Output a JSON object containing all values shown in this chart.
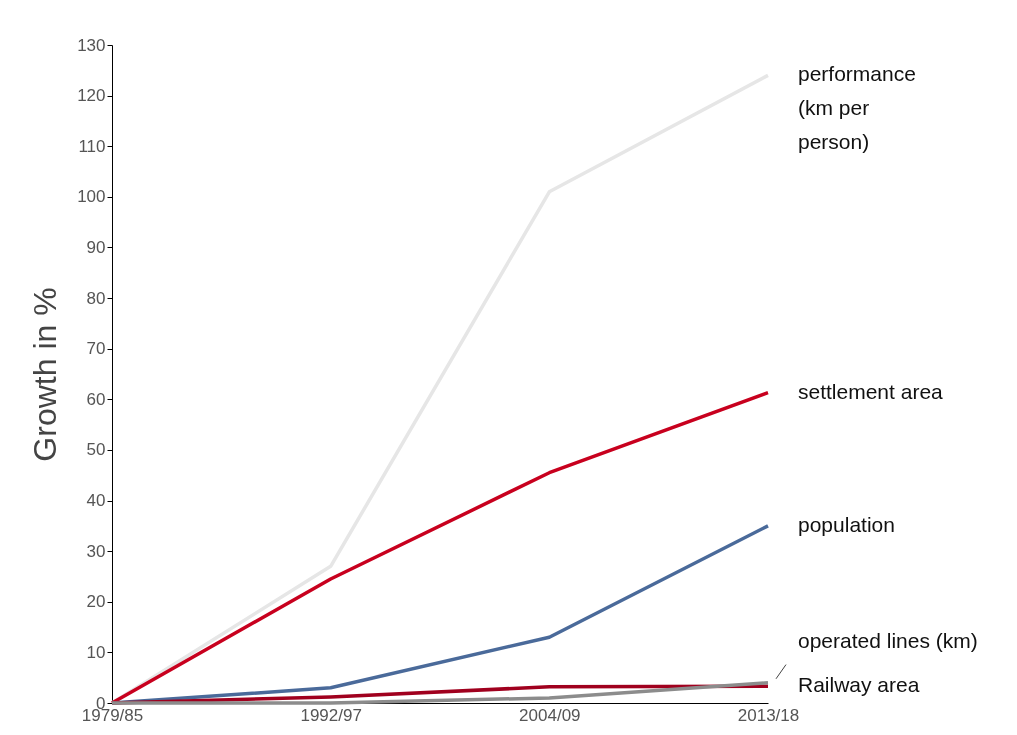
{
  "chart_data": {
    "type": "line",
    "ylabel": "Growth in %",
    "categories": [
      "1979/85",
      "1992/97",
      "2004/09",
      "2013/18"
    ],
    "series": [
      {
        "name": "performance (km per person)",
        "color": "#e6e6e6",
        "values": [
          0,
          27,
          101,
          124
        ]
      },
      {
        "name": "settlement area",
        "color": "#c8001e",
        "values": [
          0,
          24.5,
          45.5,
          61.3
        ]
      },
      {
        "name": "population",
        "color": "#4a6a9a",
        "values": [
          0,
          3,
          13,
          35
        ]
      },
      {
        "name": "Railway area",
        "color": "#a0001e",
        "values": [
          0,
          1.2,
          3.2,
          3.3
        ]
      },
      {
        "name": "operated lines (km)",
        "color": "#8c8c8c",
        "values": [
          0,
          0,
          1,
          4
        ]
      }
    ],
    "ylim": [
      0,
      130
    ],
    "yticks": [
      0,
      10,
      20,
      30,
      40,
      50,
      60,
      70,
      80,
      90,
      100,
      110,
      120,
      130
    ],
    "grid": false,
    "legend": false,
    "marker": "none",
    "line_style": "solid"
  }
}
